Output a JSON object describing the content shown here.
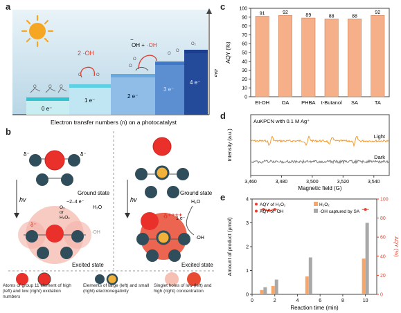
{
  "panel_labels": {
    "a": "a",
    "b": "b",
    "c": "c",
    "d": "d",
    "e": "e"
  },
  "panel_a": {
    "steps": [
      "0 e⁻",
      "1 e⁻",
      "2 e⁻",
      "3 e⁻",
      "4 e⁻"
    ],
    "species": {
      "oh_radical": "2 ·OH",
      "oh_ion_plus_radical_1": "−",
      "oh_ion_plus_radical_2": "OH +",
      "oh_ion_plus_radical_3": "·OH"
    },
    "y_axis_label": "ΔG",
    "x_axis_label": "Electron transfer numbers (n) on a photocatalyst",
    "colors": {
      "step0": "#2fc4d0",
      "step1": "#5fd0e4",
      "step2": "#6aa8e0",
      "step3": "#3f78c8",
      "step4": "#1b3f8e",
      "sun": "#f5a623"
    }
  },
  "panel_b": {
    "ground_state": "Ground state",
    "excited_state": "Excited state",
    "hv": "hv",
    "delta_minus": "δ⁻",
    "delta_plus": "δ⁺",
    "delta_big": "δ⁺⁺⁺⁺",
    "o2_or_h2o2": "O₂\nor\nH₂O₂",
    "left_electrons": "~2–4 e⁻",
    "right_electrons": "1 e⁻",
    "h2o": "H₂O",
    "oh": "·OH",
    "legend": [
      "Atoms of group 11 element of high (left) and low (right) oxidation numbers",
      "Elements of large (left) and small (right) electronegativity",
      "Singlet holes of low (left) and high (right) concentration"
    ]
  },
  "panel_c_chart": {
    "type": "bar",
    "categories": [
      "Et-OH",
      "OA",
      "PHBA",
      "t-Butanol",
      "SA",
      "TA"
    ],
    "values": [
      91,
      92,
      89,
      88,
      88,
      92
    ],
    "ylabel": "AQY (%)",
    "ylim": [
      0,
      100
    ],
    "yticks": [
      0,
      10,
      20,
      30,
      40,
      50,
      60,
      70,
      80,
      90,
      100
    ],
    "bar_color": "#f5b08a"
  },
  "panel_d_chart": {
    "type": "line",
    "title": "AuKPCN with 0.1 M Ag⁺",
    "xlabel": "Magnetic field (G)",
    "ylabel": "Intensity (a.u.)",
    "xlim": [
      3460,
      3550
    ],
    "xticks": [
      "3,460",
      "3,480",
      "3,500",
      "3,520",
      "3,540"
    ],
    "series": [
      {
        "name": "Light",
        "color": "#f39a2b"
      },
      {
        "name": "Dark",
        "color": "#7a7a7a"
      }
    ]
  },
  "panel_e_chart": {
    "type": "bar",
    "x": [
      1,
      2,
      5,
      10
    ],
    "xlabel": "Reaction time (min)",
    "ylabel": "Amount of product (µmol)",
    "ylabel_right": "AQY (%)",
    "xlim": [
      0,
      11
    ],
    "ylim": [
      0,
      4
    ],
    "ylim_right": [
      0,
      100
    ],
    "xticks": [
      0,
      2,
      4,
      6,
      8,
      10
    ],
    "yticks": [
      0,
      1,
      2,
      3,
      4
    ],
    "yticks_right": [
      0,
      20,
      40,
      60,
      80,
      100
    ],
    "series": [
      {
        "name": "H₂O₂",
        "values": [
          0.18,
          0.35,
          0.75,
          1.5
        ],
        "color": "#f5a66a"
      },
      {
        "name": "·OH captured by SA",
        "values": [
          0.3,
          0.62,
          1.55,
          3.0
        ],
        "color": "#a9a9a9"
      }
    ],
    "aqy_series": [
      {
        "name": "AQY of H₂O₂",
        "color": "#f26b2a"
      },
      {
        "name": "AQY of ·OH",
        "color": "#e8402a"
      }
    ],
    "aqy_values": [
      {
        "x": 1,
        "y": 89
      },
      {
        "x": 1.5,
        "y": 88
      },
      {
        "x": 2,
        "y": 89
      },
      {
        "x": 10,
        "y": 89
      }
    ]
  }
}
